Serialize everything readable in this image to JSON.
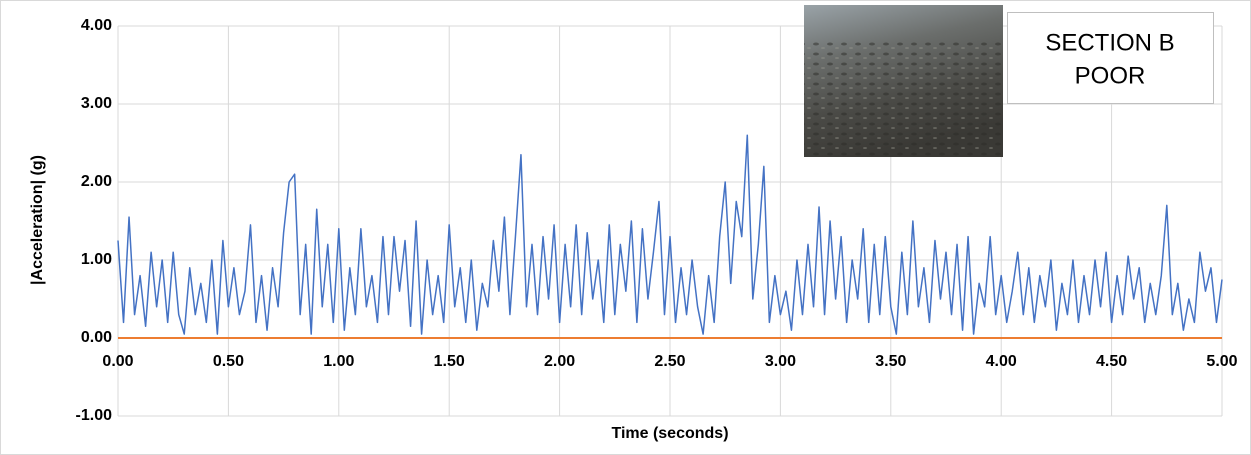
{
  "chart_data": {
    "type": "line",
    "xlabel": "Time (seconds)",
    "ylabel": "|Acceleration| (g)",
    "annotation_lines": [
      "SECTION B",
      "POOR"
    ],
    "xlim": [
      0,
      5
    ],
    "ylim": [
      -1,
      4
    ],
    "grid": true,
    "xticks": [
      {
        "value": 0,
        "label": "0.00"
      },
      {
        "value": 0.5,
        "label": "0.50"
      },
      {
        "value": 1,
        "label": "1.00"
      },
      {
        "value": 1.5,
        "label": "1.50"
      },
      {
        "value": 2,
        "label": "2.00"
      },
      {
        "value": 2.5,
        "label": "2.50"
      },
      {
        "value": 3,
        "label": "3.00"
      },
      {
        "value": 3.5,
        "label": "3.50"
      },
      {
        "value": 4,
        "label": "4.00"
      },
      {
        "value": 4.5,
        "label": "4.50"
      },
      {
        "value": 5,
        "label": "5.00"
      }
    ],
    "yticks": [
      {
        "value": -1,
        "label": "-1.00"
      },
      {
        "value": 0,
        "label": "0.00"
      },
      {
        "value": 1,
        "label": "1.00"
      },
      {
        "value": 2,
        "label": "2.00"
      },
      {
        "value": 3,
        "label": "3.00"
      },
      {
        "value": 4,
        "label": "4.00"
      }
    ],
    "series": [
      {
        "color": "#4472c4",
        "x": [
          0,
          0.025,
          0.05,
          0.075,
          0.1,
          0.125,
          0.15,
          0.175,
          0.2,
          0.225,
          0.25,
          0.275,
          0.3,
          0.325,
          0.35,
          0.375,
          0.4,
          0.425,
          0.45,
          0.475,
          0.5,
          0.525,
          0.55,
          0.575,
          0.6,
          0.625,
          0.65,
          0.675,
          0.7,
          0.725,
          0.75,
          0.775,
          0.8,
          0.825,
          0.85,
          0.875,
          0.9,
          0.925,
          0.95,
          0.975,
          1,
          1.025,
          1.05,
          1.075,
          1.1,
          1.125,
          1.15,
          1.175,
          1.2,
          1.225,
          1.25,
          1.275,
          1.3,
          1.325,
          1.35,
          1.375,
          1.4,
          1.425,
          1.45,
          1.475,
          1.5,
          1.525,
          1.55,
          1.575,
          1.6,
          1.625,
          1.65,
          1.675,
          1.7,
          1.725,
          1.75,
          1.775,
          1.8,
          1.825,
          1.85,
          1.875,
          1.9,
          1.925,
          1.95,
          1.975,
          2,
          2.025,
          2.05,
          2.075,
          2.1,
          2.125,
          2.15,
          2.175,
          2.2,
          2.225,
          2.25,
          2.275,
          2.3,
          2.325,
          2.35,
          2.375,
          2.4,
          2.425,
          2.45,
          2.475,
          2.5,
          2.525,
          2.55,
          2.575,
          2.6,
          2.625,
          2.65,
          2.675,
          2.7,
          2.725,
          2.75,
          2.775,
          2.8,
          2.825,
          2.85,
          2.875,
          2.9,
          2.925,
          2.95,
          2.975,
          3,
          3.025,
          3.05,
          3.075,
          3.1,
          3.125,
          3.15,
          3.175,
          3.2,
          3.225,
          3.25,
          3.275,
          3.3,
          3.325,
          3.35,
          3.375,
          3.4,
          3.425,
          3.45,
          3.475,
          3.5,
          3.525,
          3.55,
          3.575,
          3.6,
          3.625,
          3.65,
          3.675,
          3.7,
          3.725,
          3.75,
          3.775,
          3.8,
          3.825,
          3.85,
          3.875,
          3.9,
          3.925,
          3.95,
          3.975,
          4,
          4.025,
          4.05,
          4.075,
          4.1,
          4.125,
          4.15,
          4.175,
          4.2,
          4.225,
          4.25,
          4.275,
          4.3,
          4.325,
          4.35,
          4.375,
          4.4,
          4.425,
          4.45,
          4.475,
          4.5,
          4.525,
          4.55,
          4.575,
          4.6,
          4.625,
          4.65,
          4.675,
          4.7,
          4.725,
          4.75,
          4.775,
          4.8,
          4.825,
          4.85,
          4.875,
          4.9,
          4.925,
          4.95,
          4.975,
          5
        ],
        "values": [
          1.25,
          0.2,
          1.55,
          0.3,
          0.8,
          0.15,
          1.1,
          0.4,
          1.0,
          0.2,
          1.1,
          0.3,
          0.05,
          0.9,
          0.3,
          0.7,
          0.2,
          1.0,
          0.05,
          1.25,
          0.4,
          0.9,
          0.3,
          0.6,
          1.45,
          0.2,
          0.8,
          0.1,
          0.9,
          0.4,
          1.35,
          2.0,
          2.1,
          0.3,
          1.2,
          0.05,
          1.65,
          0.4,
          1.2,
          0.2,
          1.4,
          0.1,
          0.9,
          0.3,
          1.4,
          0.4,
          0.8,
          0.2,
          1.3,
          0.3,
          1.3,
          0.6,
          1.25,
          0.15,
          1.5,
          0.05,
          1.0,
          0.3,
          0.8,
          0.2,
          1.45,
          0.4,
          0.9,
          0.2,
          1.0,
          0.1,
          0.7,
          0.4,
          1.25,
          0.6,
          1.55,
          0.3,
          1.3,
          2.35,
          0.4,
          1.2,
          0.3,
          1.3,
          0.5,
          1.45,
          0.2,
          1.2,
          0.4,
          1.45,
          0.3,
          1.35,
          0.5,
          1.0,
          0.2,
          1.45,
          0.3,
          1.2,
          0.6,
          1.5,
          0.2,
          1.4,
          0.5,
          1.1,
          1.75,
          0.3,
          1.3,
          0.2,
          0.9,
          0.3,
          1.0,
          0.4,
          0.05,
          0.8,
          0.2,
          1.3,
          2.0,
          0.7,
          1.75,
          1.3,
          2.6,
          0.5,
          1.2,
          2.2,
          0.2,
          0.8,
          0.3,
          0.6,
          0.1,
          1.0,
          0.3,
          1.2,
          0.4,
          1.68,
          0.3,
          1.5,
          0.5,
          1.3,
          0.2,
          1.0,
          0.5,
          1.4,
          0.2,
          1.2,
          0.3,
          1.3,
          0.4,
          0.05,
          1.1,
          0.3,
          1.5,
          0.4,
          0.9,
          0.2,
          1.25,
          0.5,
          1.1,
          0.3,
          1.2,
          0.1,
          1.3,
          0.05,
          0.7,
          0.4,
          1.3,
          0.3,
          0.8,
          0.2,
          0.6,
          1.1,
          0.3,
          0.9,
          0.2,
          0.8,
          0.4,
          1.0,
          0.1,
          0.7,
          0.3,
          1.0,
          0.2,
          0.8,
          0.3,
          1.0,
          0.4,
          1.1,
          0.2,
          0.8,
          0.3,
          1.05,
          0.5,
          0.9,
          0.2,
          0.7,
          0.3,
          0.8,
          1.7,
          0.3,
          0.7,
          0.1,
          0.5,
          0.2,
          1.1,
          0.6,
          0.9,
          0.2,
          0.75
        ]
      },
      {
        "color": "#ed7d31",
        "x": [
          0,
          5
        ],
        "values": [
          0,
          0
        ]
      }
    ]
  }
}
